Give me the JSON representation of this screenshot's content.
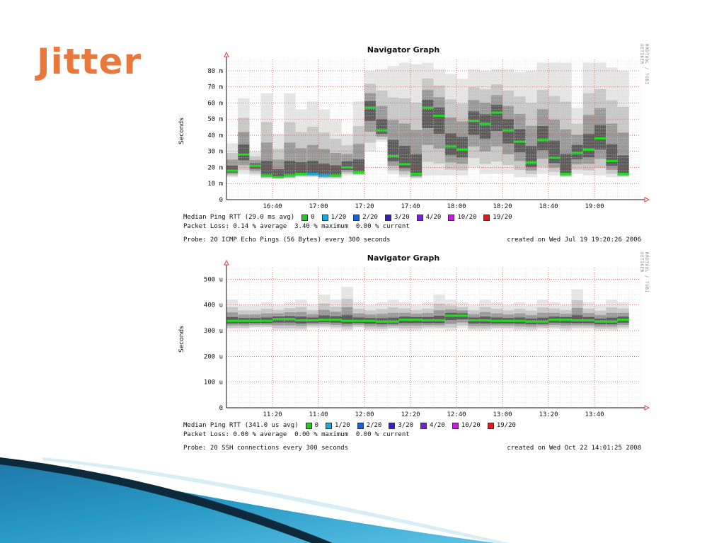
{
  "slide": {
    "title": "Jitter"
  },
  "chart_data": [
    {
      "type": "heatmap",
      "title": "Navigator Graph",
      "side_credit": "RRDTOOL / TOBI OETIKER",
      "ylabel": "Seconds",
      "xlabel": "",
      "y_unit": "m",
      "ylim": [
        0,
        87
      ],
      "y_ticks": [
        0,
        10,
        20,
        30,
        40,
        50,
        60,
        70,
        80
      ],
      "y_tick_labels": [
        "0",
        "10 m",
        "20 m",
        "30 m",
        "40 m",
        "50 m",
        "60 m",
        "70 m",
        "80 m"
      ],
      "xlim": [
        "16:20",
        "19:20"
      ],
      "x_tick_labels": [
        "16:40",
        "17:00",
        "17:20",
        "17:40",
        "18:00",
        "18:20",
        "18:40",
        "19:00"
      ],
      "interval_minutes": 5,
      "grid": true,
      "median_ms": [
        18,
        28,
        21,
        15,
        14,
        15,
        16,
        16,
        15,
        15,
        20,
        17,
        57,
        43,
        27,
        22,
        16,
        57,
        52,
        33,
        31,
        49,
        47,
        54,
        43,
        36,
        23,
        37,
        26,
        16,
        29,
        31,
        38,
        24,
        16
      ],
      "median_color": [
        "g",
        "g",
        "g",
        "g",
        "g",
        "g",
        "g",
        "c",
        "c",
        "g",
        "g",
        "g",
        "g",
        "g",
        "g",
        "g",
        "g",
        "g",
        "g",
        "g",
        "g",
        "g",
        "g",
        "g",
        "g",
        "g",
        "g",
        "g",
        "g",
        "g",
        "g",
        "g",
        "g",
        "g",
        "g"
      ],
      "range_min_ms": [
        14,
        16,
        15,
        13,
        13,
        13,
        14,
        14,
        13,
        13,
        15,
        15,
        30,
        36,
        16,
        14,
        13,
        15,
        15,
        15,
        15,
        20,
        16,
        16,
        16,
        14,
        14,
        16,
        15,
        14,
        16,
        15,
        15,
        14,
        14
      ],
      "range_max_ms": [
        35,
        63,
        30,
        66,
        41,
        66,
        56,
        61,
        56,
        50,
        41,
        61,
        80,
        81,
        83,
        85,
        84,
        85,
        81,
        78,
        75,
        81,
        80,
        81,
        81,
        79,
        80,
        85,
        85,
        85,
        57,
        85,
        85,
        82,
        80
      ],
      "legend": {
        "label": "Median Ping RTT (29.0 ms avg)",
        "entries": [
          {
            "label": "0",
            "color": "#22cc22"
          },
          {
            "label": "1/20",
            "color": "#1aa9e0"
          },
          {
            "label": "2/20",
            "color": "#1f5fd8"
          },
          {
            "label": "3/20",
            "color": "#3a1fc0"
          },
          {
            "label": "4/20",
            "color": "#7a1fd8"
          },
          {
            "label": "10/20",
            "color": "#c21fd8"
          },
          {
            "label": "19/20",
            "color": "#d81f1f"
          }
        ]
      },
      "packet_loss": "Packet Loss: 0.14 % average  3.40 % maximum  0.00 % current",
      "probe": "Probe: 20 ICMP Echo Pings (56 Bytes) every 300 seconds",
      "created": "created on Wed Jul 19 19:20:26 2006"
    },
    {
      "type": "heatmap",
      "title": "Navigator Graph",
      "side_credit": "RRDTOOL / TOBI OETIKER",
      "ylabel": "Seconds",
      "xlabel": "",
      "y_unit": "u",
      "ylim": [
        0,
        545
      ],
      "y_ticks": [
        0,
        100,
        200,
        300,
        400,
        500
      ],
      "y_tick_labels": [
        "0",
        "100 u",
        "200 u",
        "300 u",
        "400 u",
        "500 u"
      ],
      "xlim": [
        "11:00",
        "14:00"
      ],
      "x_tick_labels": [
        "11:20",
        "11:40",
        "12:00",
        "12:20",
        "12:40",
        "13:00",
        "13:20",
        "13:40"
      ],
      "interval_minutes": 5,
      "grid": true,
      "median_us": [
        338,
        338,
        338,
        338,
        345,
        345,
        340,
        340,
        342,
        342,
        338,
        338,
        338,
        335,
        335,
        342,
        342,
        340,
        340,
        358,
        358,
        340,
        340,
        338,
        338,
        338,
        335,
        335,
        342,
        342,
        340,
        340,
        335,
        335,
        342
      ],
      "range_min_us": [
        305,
        305,
        310,
        310,
        300,
        300,
        300,
        310,
        310,
        305,
        300,
        310,
        300,
        300,
        305,
        300,
        300,
        305,
        305,
        300,
        310,
        300,
        300,
        305,
        305,
        300,
        300,
        305,
        305,
        300,
        305,
        305,
        300,
        300,
        305
      ],
      "range_max_us": [
        420,
        400,
        400,
        410,
        400,
        410,
        420,
        400,
        440,
        420,
        470,
        410,
        400,
        410,
        420,
        410,
        400,
        410,
        440,
        420,
        410,
        400,
        420,
        410,
        400,
        410,
        400,
        420,
        410,
        400,
        460,
        410,
        400,
        420,
        410
      ],
      "legend": {
        "label": "Median Ping RTT (341.0 us avg)",
        "entries": [
          {
            "label": "0",
            "color": "#22cc22"
          },
          {
            "label": "1/20",
            "color": "#1aa9e0"
          },
          {
            "label": "2/20",
            "color": "#1f5fd8"
          },
          {
            "label": "3/20",
            "color": "#3a1fc0"
          },
          {
            "label": "4/20",
            "color": "#7a1fd8"
          },
          {
            "label": "10/20",
            "color": "#c21fd8"
          },
          {
            "label": "19/20",
            "color": "#d81f1f"
          }
        ]
      },
      "packet_loss": "Packet Loss: 0.00 % average  0.00 % maximum  0.00 % current",
      "probe": "Probe: 20 SSH connections every 300 seconds",
      "created": "created on Wed Oct 22 14:01:25 2008"
    }
  ]
}
